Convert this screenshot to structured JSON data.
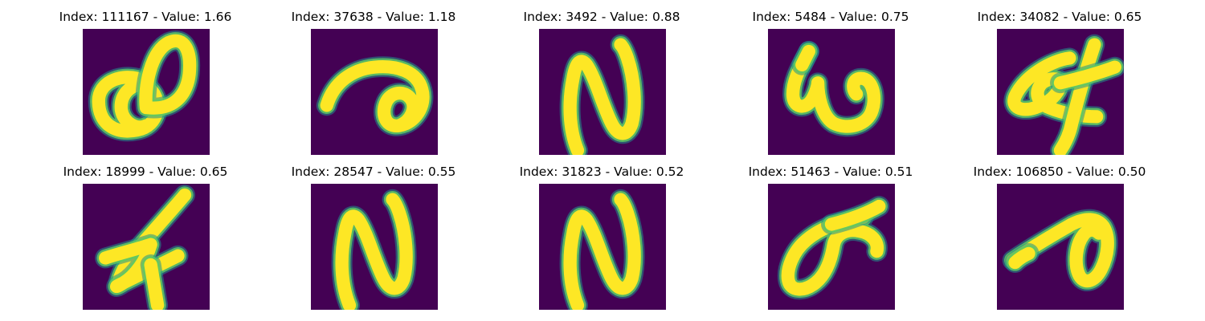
{
  "colors": {
    "background": "#440154",
    "edge": "#21918c",
    "mid": "#5ec962",
    "stroke": "#fde725"
  },
  "panels": [
    {
      "index": "111167",
      "value": "1.66",
      "glyph": "double-loop-8"
    },
    {
      "index": "37638",
      "value": "1.18",
      "glyph": "arc-with-loop"
    },
    {
      "index": "3492",
      "value": "0.88",
      "glyph": "n-shape"
    },
    {
      "index": "5484",
      "value": "0.75",
      "glyph": "w-shape"
    },
    {
      "index": "34082",
      "value": "0.65",
      "glyph": "loop-cross"
    },
    {
      "index": "18999",
      "value": "0.65",
      "glyph": "zigzag-cross"
    },
    {
      "index": "28547",
      "value": "0.55",
      "glyph": "n-shape"
    },
    {
      "index": "31823",
      "value": "0.52",
      "glyph": "n-shape"
    },
    {
      "index": "51463",
      "value": "0.51",
      "glyph": "loop-with-tail"
    },
    {
      "index": "106850",
      "value": "0.50",
      "glyph": "slash-loop"
    }
  ]
}
